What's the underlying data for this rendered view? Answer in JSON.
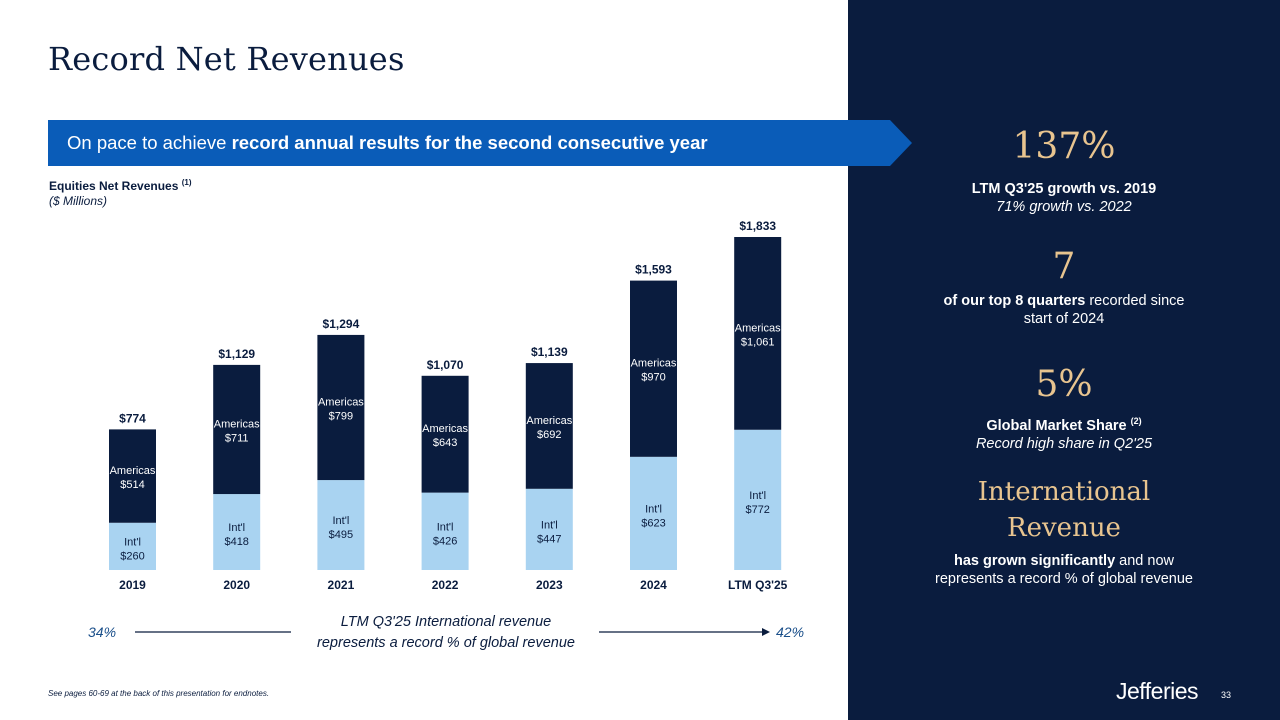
{
  "title": "Record Net Revenues",
  "banner": {
    "prefix": "On pace to achieve ",
    "bold": "record annual results for the second consecutive year"
  },
  "chart_header": {
    "label": "Equities Net Revenues",
    "label_note": "(1)",
    "unit": "($ Millions)"
  },
  "chart_data": {
    "type": "bar",
    "stacked": true,
    "title": "Equities Net Revenues (1)",
    "ylabel": "($ Millions)",
    "categories": [
      "2019",
      "2020",
      "2021",
      "2022",
      "2023",
      "2024",
      "LTM Q3'25"
    ],
    "series": [
      {
        "name": "Int'l",
        "label": "Int'l",
        "color": "#a9d3f1",
        "values": [
          260,
          418,
          495,
          426,
          447,
          623,
          772
        ]
      },
      {
        "name": "Americas",
        "label": "Americas",
        "color": "#0a1c3e",
        "values": [
          514,
          711,
          799,
          643,
          692,
          970,
          1061
        ]
      }
    ],
    "totals": [
      774,
      1129,
      1294,
      1070,
      1139,
      1593,
      1833
    ],
    "total_labels": [
      "$774",
      "$1,129",
      "$1,294",
      "$1,070",
      "$1,139",
      "$1,593",
      "$1,833"
    ],
    "intl_labels": [
      "$260",
      "$418",
      "$495",
      "$426",
      "$447",
      "$623",
      "$772"
    ],
    "americas_labels": [
      "$514",
      "$711",
      "$799",
      "$643",
      "$692",
      "$970",
      "$1,061"
    ],
    "ylim": [
      0,
      1833
    ],
    "grid": false,
    "legend": "none"
  },
  "comparison": {
    "start_pct": "34%",
    "end_pct": "42%",
    "note_line1": "LTM Q3'25 International revenue",
    "note_line2": "represents a record % of global revenue"
  },
  "footnote": "See pages 60-69 at the back of this presentation for endnotes.",
  "stats": [
    {
      "value": "137%",
      "bold": "LTM Q3'25 growth vs. 2019",
      "italic": "71% growth vs. 2022"
    },
    {
      "value": "7",
      "bold": "of our top 8 quarters",
      "plain": " recorded since start of 2024"
    },
    {
      "value": "5%",
      "bold": "Global Market Share",
      "bold_note": "(2)",
      "italic": "Record high share in Q2'25"
    },
    {
      "value": "International Revenue",
      "bold": "has grown significantly",
      "plain": " and now represents a record % of global revenue"
    }
  ],
  "logo": "Jefferies",
  "page_number": "33",
  "colors": {
    "navy": "#0a1c3e",
    "blue_banner": "#0a5cb8",
    "light_blue": "#a9d3f1",
    "gold": "#e8c48f"
  }
}
